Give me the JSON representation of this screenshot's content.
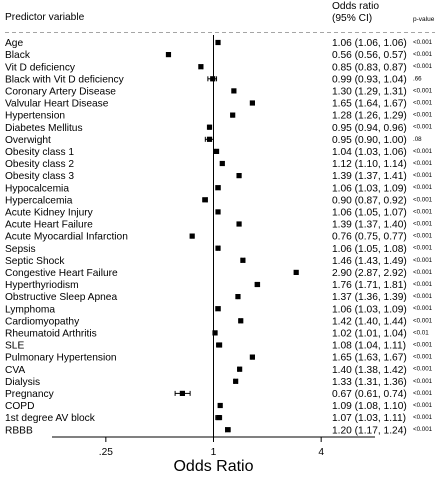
{
  "chart_data": {
    "type": "forest",
    "xlabel": "Odds Ratio",
    "xscale": "log",
    "xlim": [
      0.125,
      8
    ],
    "xticks": [
      {
        "value": 0.25,
        "label": ".25"
      },
      {
        "value": 1,
        "label": "1"
      },
      {
        "value": 4,
        "label": "4"
      }
    ],
    "reference_line": 1,
    "headers": {
      "variable": "Predictor variable",
      "or_line1": "Odds ratio",
      "or_line2": "(95% CI)",
      "pvalue": "p-value"
    },
    "rows": [
      {
        "label": "Age",
        "or": 1.06,
        "lo": 1.06,
        "hi": 1.06,
        "or_text": "1.06 (1.06, 1.06)",
        "p": "<0.001"
      },
      {
        "label": "Black",
        "or": 0.56,
        "lo": 0.56,
        "hi": 0.57,
        "or_text": "0.56 (0.56, 0.57)",
        "p": "<0.001"
      },
      {
        "label": "Vit D deficiency",
        "or": 0.85,
        "lo": 0.83,
        "hi": 0.87,
        "or_text": "0.85 (0.83, 0.87)",
        "p": "<0.001"
      },
      {
        "label": "Black with Vit D deficiency",
        "or": 0.99,
        "lo": 0.93,
        "hi": 1.04,
        "or_text": "0.99 (0.93, 1.04)",
        "p": ".66"
      },
      {
        "label": "Coronary Artery Disease",
        "or": 1.3,
        "lo": 1.29,
        "hi": 1.31,
        "or_text": "1.30 (1.29, 1.31)",
        "p": "<0.001"
      },
      {
        "label": "Valvular Heart Disease",
        "or": 1.65,
        "lo": 1.64,
        "hi": 1.67,
        "or_text": "1.65 (1.64, 1.67)",
        "p": "<0.001"
      },
      {
        "label": "Hypertension",
        "or": 1.28,
        "lo": 1.26,
        "hi": 1.29,
        "or_text": "1.28 (1.26, 1.29)",
        "p": "<0.001"
      },
      {
        "label": "Diabetes Mellitus",
        "or": 0.95,
        "lo": 0.94,
        "hi": 0.96,
        "or_text": "0.95 (0.94, 0.96)",
        "p": "<0.001"
      },
      {
        "label": "Overwight",
        "or": 0.95,
        "lo": 0.9,
        "hi": 1.0,
        "or_text": "0.95 (0.90, 1.00)",
        "p": ".08"
      },
      {
        "label": "Obesity class 1",
        "or": 1.04,
        "lo": 1.03,
        "hi": 1.06,
        "or_text": "1.04 (1.03, 1.06)",
        "p": "<0.001"
      },
      {
        "label": "Obesity class 2",
        "or": 1.12,
        "lo": 1.1,
        "hi": 1.14,
        "or_text": "1.12 (1.10, 1.14)",
        "p": "<0.001"
      },
      {
        "label": "Obesity class 3",
        "or": 1.39,
        "lo": 1.37,
        "hi": 1.41,
        "or_text": "1.39 (1.37, 1.41)",
        "p": "<0.001"
      },
      {
        "label": "Hypocalcemia",
        "or": 1.06,
        "lo": 1.03,
        "hi": 1.09,
        "or_text": "1.06 (1.03, 1.09)",
        "p": "<0.001"
      },
      {
        "label": "Hypercalcemia",
        "or": 0.9,
        "lo": 0.87,
        "hi": 0.92,
        "or_text": "0.90 (0.87, 0.92)",
        "p": "<0.001"
      },
      {
        "label": "Acute Kidney Injury",
        "or": 1.06,
        "lo": 1.05,
        "hi": 1.07,
        "or_text": "1.06 (1.05, 1.07)",
        "p": "<0.001"
      },
      {
        "label": "Acute Heart Failure",
        "or": 1.39,
        "lo": 1.37,
        "hi": 1.4,
        "or_text": "1.39 (1.37, 1.40)",
        "p": "<0.001"
      },
      {
        "label": "Acute Myocardial Infarction",
        "or": 0.76,
        "lo": 0.75,
        "hi": 0.77,
        "or_text": "0.76 (0.75, 0.77)",
        "p": "<0.001"
      },
      {
        "label": "Sepsis",
        "or": 1.06,
        "lo": 1.05,
        "hi": 1.08,
        "or_text": "1.06 (1.05, 1.08)",
        "p": "<0.001"
      },
      {
        "label": "Septic Shock",
        "or": 1.46,
        "lo": 1.43,
        "hi": 1.49,
        "or_text": "1.46 (1.43, 1.49)",
        "p": "<0.001"
      },
      {
        "label": "Congestive Heart Failure",
        "or": 2.9,
        "lo": 2.87,
        "hi": 2.92,
        "or_text": "2.90 (2.87, 2.92)",
        "p": "<0.001"
      },
      {
        "label": "Hyperthyriodism",
        "or": 1.76,
        "lo": 1.71,
        "hi": 1.81,
        "or_text": "1.76 (1.71, 1.81)",
        "p": "<0.001"
      },
      {
        "label": "Obstructive Sleep Apnea",
        "or": 1.37,
        "lo": 1.36,
        "hi": 1.39,
        "or_text": "1.37 (1.36, 1.39)",
        "p": "<0.001"
      },
      {
        "label": "Lymphoma",
        "or": 1.06,
        "lo": 1.03,
        "hi": 1.09,
        "or_text": "1.06 (1.03, 1.09)",
        "p": "<0.001"
      },
      {
        "label": "Cardiomyopathy",
        "or": 1.42,
        "lo": 1.4,
        "hi": 1.44,
        "or_text": "1.42 (1.40, 1.44)",
        "p": "<0.001"
      },
      {
        "label": "Rheumatoid Arthritis",
        "or": 1.02,
        "lo": 1.01,
        "hi": 1.04,
        "or_text": "1.02 (1.01, 1.04)",
        "p": "<0.01"
      },
      {
        "label": "SLE",
        "or": 1.08,
        "lo": 1.04,
        "hi": 1.11,
        "or_text": "1.08 (1.04, 1.11)",
        "p": "<0.001"
      },
      {
        "label": "Pulmonary Hypertension",
        "or": 1.65,
        "lo": 1.63,
        "hi": 1.67,
        "or_text": "1.65 (1.63, 1.67)",
        "p": "<0.001"
      },
      {
        "label": "CVA",
        "or": 1.4,
        "lo": 1.38,
        "hi": 1.42,
        "or_text": "1.40 (1.38, 1.42)",
        "p": "<0.001"
      },
      {
        "label": "Dialysis",
        "or": 1.33,
        "lo": 1.31,
        "hi": 1.36,
        "or_text": "1.33 (1.31, 1.36)",
        "p": "<0.001"
      },
      {
        "label": "Pregnancy",
        "or": 0.67,
        "lo": 0.61,
        "hi": 0.74,
        "or_text": "0.67 (0.61, 0.74)",
        "p": "<0.001"
      },
      {
        "label": "COPD",
        "or": 1.09,
        "lo": 1.08,
        "hi": 1.1,
        "or_text": "1.09 (1.08, 1.10)",
        "p": "<0.001"
      },
      {
        "label": "1st degree AV block",
        "or": 1.07,
        "lo": 1.03,
        "hi": 1.11,
        "or_text": "1.07 (1.03, 1.11)",
        "p": "<0.001"
      },
      {
        "label": "RBBB",
        "or": 1.2,
        "lo": 1.17,
        "hi": 1.24,
        "or_text": "1.20 (1.17, 1.24)",
        "p": "<0.001"
      }
    ]
  }
}
